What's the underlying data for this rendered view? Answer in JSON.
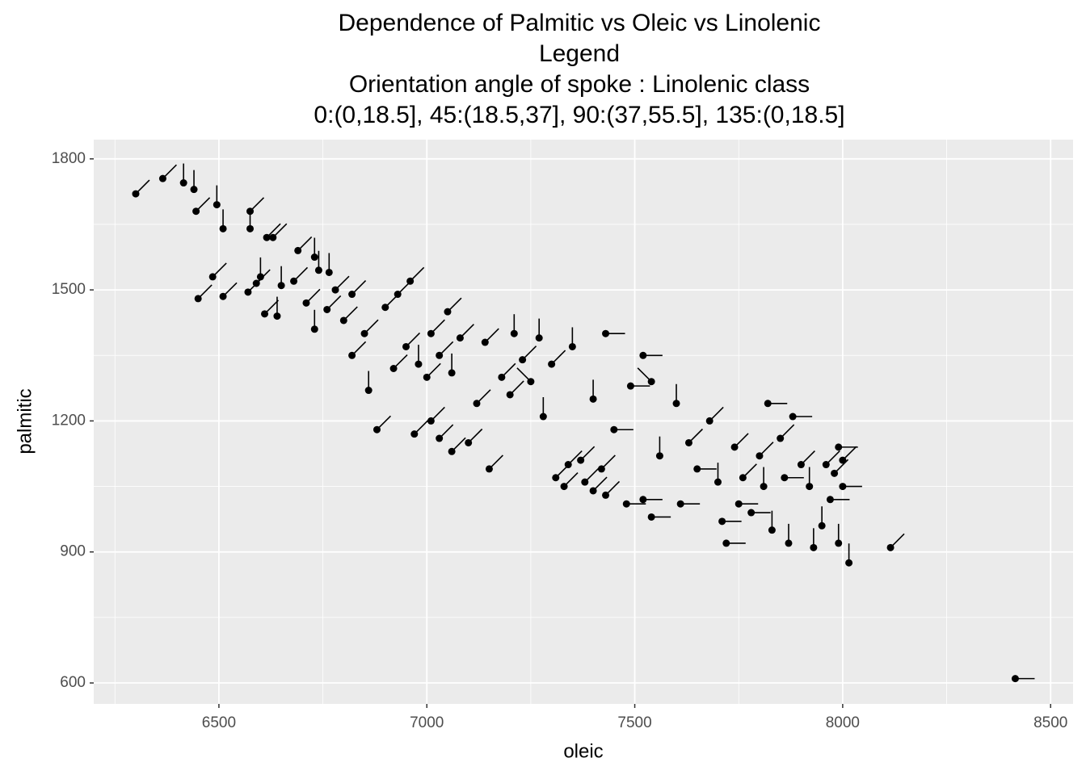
{
  "chart_data": {
    "type": "scatter",
    "title": [
      "Dependence of Palmitic vs Oleic vs Linolenic",
      "Legend",
      "Orientation angle of spoke : Linolenic class",
      "0:(0,18.5], 45:(18.5,37], 90:(37,55.5], 135:(0,18.5]"
    ],
    "x_label": "oleic",
    "y_label": "palmitic",
    "xlim": [
      6199,
      8554
    ],
    "ylim": [
      552,
      1844
    ],
    "xticks": [
      6500,
      7000,
      7500,
      8000,
      8500
    ],
    "yticks": [
      600,
      900,
      1200,
      1500,
      1800
    ],
    "x_minor_ticks": [
      6250,
      6750,
      7250,
      7750,
      8250
    ],
    "y_minor_ticks": [
      750,
      1050,
      1350,
      1650
    ],
    "grid": true,
    "color": "#000000",
    "x": [
      6300,
      6365,
      6415,
      6440,
      6445,
      6495,
      6510,
      6575,
      6575,
      6615,
      6630,
      6485,
      6450,
      6510,
      6690,
      6730,
      6740,
      6765,
      6570,
      6590,
      6600,
      6610,
      6640,
      6650,
      6680,
      6710,
      6730,
      6760,
      6780,
      6800,
      6820,
      6820,
      6860,
      6850,
      6880,
      6900,
      6920,
      6930,
      6960,
      6950,
      6980,
      7000,
      7010,
      7030,
      7050,
      7060,
      7080,
      6970,
      7010,
      7030,
      7060,
      7100,
      7120,
      7140,
      7150,
      7180,
      7200,
      7210,
      7230,
      7250,
      7270,
      7280,
      7300,
      7310,
      7330,
      7340,
      7350,
      7370,
      7380,
      7400,
      7400,
      7420,
      7430,
      7430,
      7450,
      7480,
      7490,
      7520,
      7540,
      7520,
      7540,
      7560,
      7600,
      7610,
      7630,
      7650,
      7680,
      7700,
      7710,
      7720,
      7740,
      7750,
      7760,
      7780,
      7800,
      7810,
      7820,
      7830,
      7850,
      7860,
      7870,
      7880,
      7900,
      7920,
      7930,
      7950,
      7960,
      7970,
      7980,
      7990,
      8000,
      7990,
      8015,
      8000,
      8115,
      8415
    ],
    "values": [
      1720,
      1755,
      1745,
      1730,
      1680,
      1695,
      1640,
      1680,
      1640,
      1620,
      1620,
      1530,
      1480,
      1485,
      1590,
      1575,
      1545,
      1540,
      1495,
      1515,
      1530,
      1445,
      1440,
      1510,
      1520,
      1470,
      1410,
      1455,
      1500,
      1430,
      1490,
      1350,
      1270,
      1400,
      1180,
      1460,
      1320,
      1490,
      1520,
      1370,
      1330,
      1300,
      1400,
      1350,
      1450,
      1310,
      1390,
      1170,
      1200,
      1160,
      1130,
      1150,
      1240,
      1380,
      1090,
      1300,
      1260,
      1400,
      1340,
      1290,
      1390,
      1210,
      1330,
      1070,
      1050,
      1100,
      1370,
      1110,
      1060,
      1250,
      1040,
      1090,
      1400,
      1030,
      1180,
      1010,
      1280,
      1350,
      1290,
      1020,
      980,
      1120,
      1240,
      1010,
      1150,
      1090,
      1200,
      1060,
      970,
      920,
      1140,
      1010,
      1070,
      990,
      1120,
      1050,
      1240,
      950,
      1160,
      1070,
      920,
      1210,
      1100,
      1050,
      910,
      960,
      1100,
      1020,
      1080,
      1140,
      1110,
      920,
      875,
      1050,
      910,
      610
    ],
    "angles": [
      45,
      45,
      90,
      90,
      45,
      90,
      90,
      45,
      90,
      45,
      45,
      45,
      45,
      45,
      45,
      90,
      90,
      90,
      45,
      45,
      90,
      45,
      90,
      90,
      45,
      45,
      90,
      45,
      45,
      45,
      45,
      45,
      90,
      45,
      45,
      45,
      45,
      45,
      45,
      45,
      90,
      45,
      45,
      45,
      45,
      90,
      45,
      45,
      45,
      45,
      45,
      45,
      45,
      45,
      45,
      45,
      45,
      90,
      45,
      135,
      90,
      90,
      45,
      45,
      45,
      45,
      90,
      45,
      45,
      90,
      45,
      45,
      0,
      45,
      0,
      0,
      0,
      0,
      135,
      0,
      0,
      90,
      90,
      0,
      45,
      0,
      45,
      90,
      0,
      0,
      45,
      0,
      45,
      0,
      45,
      90,
      0,
      90,
      45,
      0,
      90,
      0,
      45,
      90,
      90,
      90,
      45,
      0,
      45,
      0,
      45,
      90,
      90,
      0,
      45,
      0
    ]
  }
}
